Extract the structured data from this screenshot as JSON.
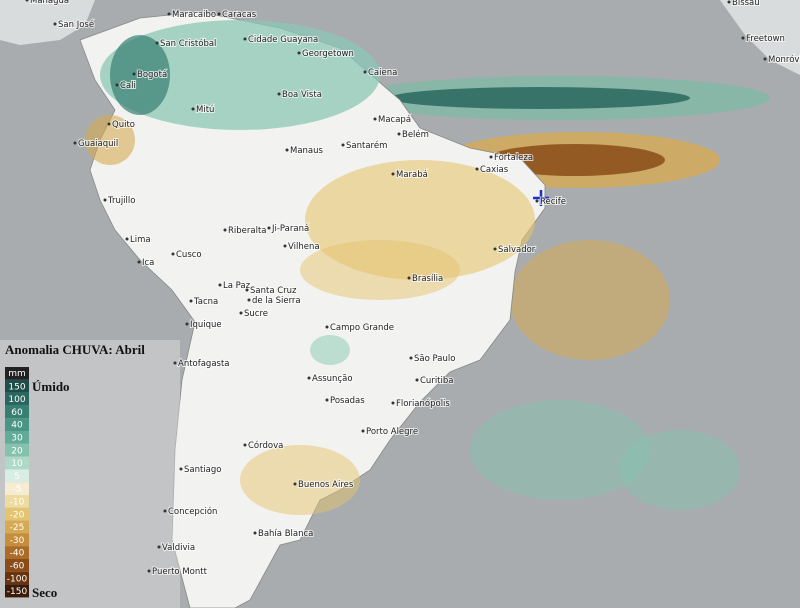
{
  "legend": {
    "title": "Anomalia CHUVA: Abril",
    "unit": "mm",
    "wet": "Úmido",
    "dry": "Seco",
    "items": [
      {
        "label": "150",
        "color": "#1f4e4a"
      },
      {
        "label": "100",
        "color": "#2a675f"
      },
      {
        "label": "60",
        "color": "#387f73"
      },
      {
        "label": "40",
        "color": "#4a9685"
      },
      {
        "label": "30",
        "color": "#62ab99"
      },
      {
        "label": "20",
        "color": "#85c2ae"
      },
      {
        "label": "10",
        "color": "#aed8c8"
      },
      {
        "label": "5",
        "color": "#d8ede4"
      },
      {
        "label": "-5",
        "color": "#f5ecd2"
      },
      {
        "label": "-10",
        "color": "#eedb9f"
      },
      {
        "label": "-20",
        "color": "#e4c46e"
      },
      {
        "label": "-25",
        "color": "#d6aa52"
      },
      {
        "label": "-30",
        "color": "#c58d3c"
      },
      {
        "label": "-40",
        "color": "#ab6c28"
      },
      {
        "label": "-60",
        "color": "#8a4c18"
      },
      {
        "label": "-100",
        "color": "#683410"
      },
      {
        "label": "-150",
        "color": "#3a1a08"
      }
    ]
  },
  "cities": [
    "Managua",
    "San José",
    "Maracaibo",
    "Caracas",
    "Cidade Guayana",
    "Georgetown",
    "Caiena",
    "San Cristóbal",
    "Bogotá",
    "Cali",
    "Quito",
    "Guaiaquil",
    "Mitú",
    "Boa Vista",
    "Macapá",
    "Belém",
    "Manaus",
    "Santarém",
    "Fortaleza",
    "Caxias",
    "Marabá",
    "Recife",
    "Trujillo",
    "Lima",
    "Ji-Paraná",
    "Riberalta",
    "Vilhena",
    "Cusco",
    "Ica",
    "Salvador",
    "Brasília",
    "La Paz",
    "Santa Cruz",
    "de la Sierra",
    "Tacna",
    "Sucre",
    "Iquique",
    "Campo Grande",
    "Antofagasta",
    "São Paulo",
    "Curitiba",
    "Assunção",
    "Posadas",
    "Florianópolis",
    "Porto Alegre",
    "Córdova",
    "Santiago",
    "Buenos Aires",
    "Concepción",
    "Bahía Blanca",
    "Valdivia",
    "Puerto Montt",
    "Bissau",
    "Freetown",
    "Monróvia"
  ]
}
